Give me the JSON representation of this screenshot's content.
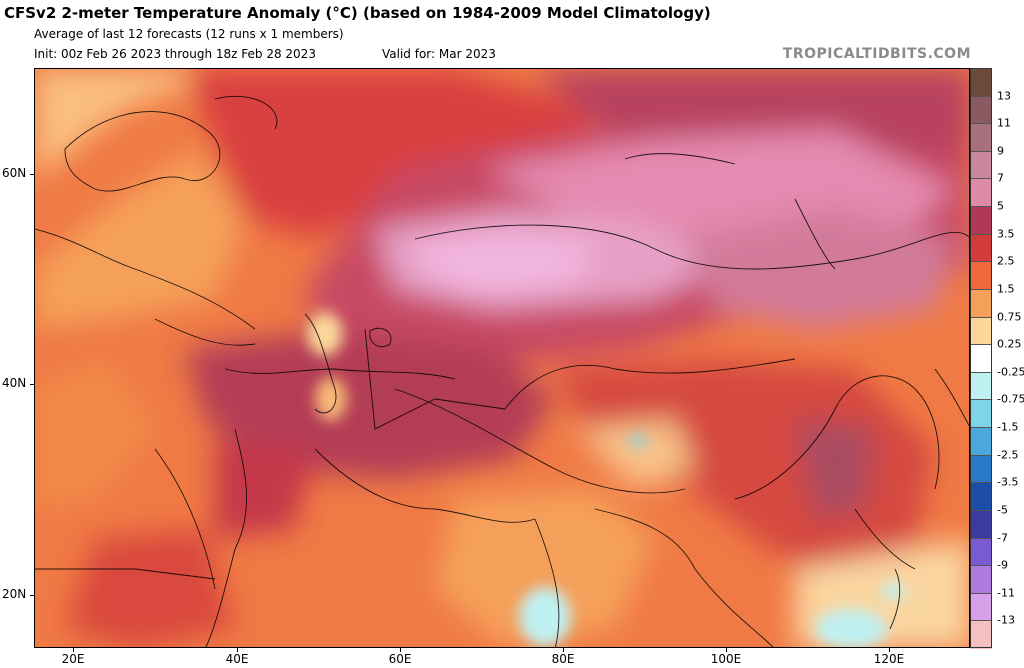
{
  "header": {
    "title": "CFSv2 2-meter Temperature Anomaly (°C) (based on 1984-2009 Model Climatology)",
    "subtitle": "Average of last 12 forecasts (12 runs x 1 members)",
    "init": "Init: 00z Feb 26 2023 through 18z Feb 28 2023",
    "valid": "Valid for: Mar 2023",
    "brand": "TROPICALTIDBITS.COM"
  },
  "map": {
    "lat_labels": [
      "60N",
      "40N",
      "20N"
    ],
    "lon_labels": [
      "20E",
      "40E",
      "60E",
      "80E",
      "100E",
      "120E"
    ]
  },
  "colorbar": {
    "labels": [
      "13",
      "11",
      "9",
      "7",
      "5",
      "3.5",
      "2.5",
      "1.5",
      "0.75",
      "0.25",
      "-0.25",
      "-0.75",
      "-1.5",
      "-2.5",
      "-3.5",
      "-5",
      "-7",
      "-9",
      "-11",
      "-13"
    ],
    "colors": [
      "#6b4a3a",
      "#8a5a62",
      "#a8707e",
      "#c9879c",
      "#e08aaa",
      "#b03a56",
      "#d23c3c",
      "#ee6a3c",
      "#f5a05a",
      "#fbd79a",
      "#ffffff",
      "#bff0f2",
      "#7fd4e8",
      "#4aa8dc",
      "#2a78c8",
      "#1c4ea8",
      "#3a3aa0",
      "#7a5ad0",
      "#b07ae0",
      "#d8a0e8",
      "#f4c0c0"
    ]
  }
}
